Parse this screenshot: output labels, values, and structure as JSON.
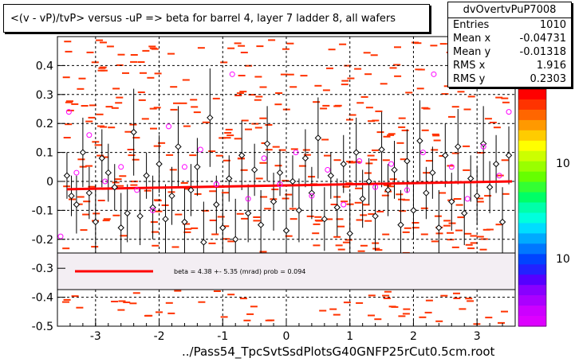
{
  "title": "<(v - vP)/tvP> versus  -uP => beta for barrel 4, layer 7 ladder 8, all wafers",
  "stats": {
    "name": "dvOvertvPuP7008",
    "rows": [
      {
        "label": "Entries",
        "value": "1010"
      },
      {
        "label": "Mean x",
        "value": "-0.04731"
      },
      {
        "label": "Mean y",
        "value": "-0.01318"
      },
      {
        "label": "RMS x",
        "value": "1.916"
      },
      {
        "label": "RMS y",
        "value": "0.2303"
      }
    ]
  },
  "xlabel": "../Pass54_TpcSvtSsdPlotsG40GNFP25rCut0.5cm.root",
  "legend_text": "beta =     4.38 +-   5.35 (mrad) prob = 0.094",
  "palette_labels": [
    "10",
    "10"
  ],
  "colors": {
    "fit_line": "#ff0000",
    "cell_fill": "#ff3300",
    "profile_marker": "#000000",
    "second_profile_marker": "#ff00ff"
  },
  "chart_data": {
    "type": "scatter",
    "xlim": [
      -3.6,
      3.6
    ],
    "ylim": [
      -0.5,
      0.5
    ],
    "x_ticks": [
      -3,
      -2,
      -1,
      0,
      1,
      2,
      3
    ],
    "x_tick_labels": [
      "-3",
      "-2",
      "-1",
      "0",
      "1",
      "2",
      "3"
    ],
    "y_ticks": [
      -0.5,
      -0.4,
      -0.3,
      -0.2,
      -0.1,
      0,
      0.1,
      0.2,
      0.3,
      0.4
    ],
    "y_tick_labels": [
      "-0.5",
      "-0.4",
      "-0.3",
      "-0.2",
      "-0.1",
      "0",
      "0.1",
      "0.2",
      "0.3",
      "0.4"
    ],
    "grid": true,
    "fit_line": {
      "x": [
        -3.45,
        3.55
      ],
      "y": [
        -0.027,
        0.0
      ]
    },
    "profile_black": [
      {
        "x": -3.45,
        "y": 0.02,
        "err": 0.08
      },
      {
        "x": -3.38,
        "y": -0.05,
        "err": 0.07
      },
      {
        "x": -3.3,
        "y": -0.08,
        "err": 0.1
      },
      {
        "x": -3.2,
        "y": 0.1,
        "err": 0.12
      },
      {
        "x": -3.1,
        "y": -0.04,
        "err": 0.09
      },
      {
        "x": -3.0,
        "y": -0.14,
        "err": 0.13
      },
      {
        "x": -2.9,
        "y": 0.08,
        "err": 0.1
      },
      {
        "x": -2.8,
        "y": 0.03,
        "err": 0.1
      },
      {
        "x": -2.7,
        "y": -0.02,
        "err": 0.08
      },
      {
        "x": -2.6,
        "y": -0.16,
        "err": 0.12
      },
      {
        "x": -2.5,
        "y": -0.11,
        "err": 0.1
      },
      {
        "x": -2.4,
        "y": 0.17,
        "err": 0.15
      },
      {
        "x": -2.3,
        "y": -0.12,
        "err": 0.1
      },
      {
        "x": -2.2,
        "y": 0.02,
        "err": 0.08
      },
      {
        "x": -2.1,
        "y": -0.09,
        "err": 0.11
      },
      {
        "x": -2.0,
        "y": 0.06,
        "err": 0.1
      },
      {
        "x": -1.9,
        "y": -0.13,
        "err": 0.12
      },
      {
        "x": -1.8,
        "y": -0.05,
        "err": 0.1
      },
      {
        "x": -1.7,
        "y": 0.12,
        "err": 0.14
      },
      {
        "x": -1.6,
        "y": -0.14,
        "err": 0.12
      },
      {
        "x": -1.5,
        "y": -0.03,
        "err": 0.09
      },
      {
        "x": -1.4,
        "y": 0.05,
        "err": 0.1
      },
      {
        "x": -1.3,
        "y": -0.21,
        "err": 0.14
      },
      {
        "x": -1.2,
        "y": 0.22,
        "err": 0.17
      },
      {
        "x": -1.1,
        "y": -0.08,
        "err": 0.1
      },
      {
        "x": -1.0,
        "y": -0.16,
        "err": 0.12
      },
      {
        "x": -0.9,
        "y": 0.01,
        "err": 0.08
      },
      {
        "x": -0.8,
        "y": -0.2,
        "err": 0.14
      },
      {
        "x": -0.7,
        "y": 0.09,
        "err": 0.12
      },
      {
        "x": -0.6,
        "y": -0.11,
        "err": 0.1
      },
      {
        "x": -0.5,
        "y": 0.04,
        "err": 0.09
      },
      {
        "x": -0.4,
        "y": -0.15,
        "err": 0.12
      },
      {
        "x": -0.3,
        "y": 0.13,
        "err": 0.13
      },
      {
        "x": -0.2,
        "y": -0.07,
        "err": 0.1
      },
      {
        "x": -0.1,
        "y": 0.03,
        "err": 0.08
      },
      {
        "x": 0.0,
        "y": -0.17,
        "err": 0.13
      },
      {
        "x": 0.1,
        "y": 0.0,
        "err": 0.09
      },
      {
        "x": 0.2,
        "y": -0.1,
        "err": 0.11
      },
      {
        "x": 0.3,
        "y": 0.08,
        "err": 0.1
      },
      {
        "x": 0.4,
        "y": -0.04,
        "err": 0.09
      },
      {
        "x": 0.5,
        "y": 0.15,
        "err": 0.14
      },
      {
        "x": 0.6,
        "y": -0.13,
        "err": 0.11
      },
      {
        "x": 0.7,
        "y": 0.02,
        "err": 0.08
      },
      {
        "x": 0.8,
        "y": -0.09,
        "err": 0.1
      },
      {
        "x": 0.9,
        "y": 0.06,
        "err": 0.1
      },
      {
        "x": 1.0,
        "y": -0.18,
        "err": 0.14
      },
      {
        "x": 1.1,
        "y": 0.1,
        "err": 0.12
      },
      {
        "x": 1.2,
        "y": -0.06,
        "err": 0.1
      },
      {
        "x": 1.3,
        "y": 0.0,
        "err": 0.08
      },
      {
        "x": 1.4,
        "y": -0.12,
        "err": 0.12
      },
      {
        "x": 1.5,
        "y": 0.11,
        "err": 0.13
      },
      {
        "x": 1.6,
        "y": -0.03,
        "err": 0.09
      },
      {
        "x": 1.7,
        "y": 0.04,
        "err": 0.1
      },
      {
        "x": 1.8,
        "y": -0.15,
        "err": 0.12
      },
      {
        "x": 1.9,
        "y": 0.07,
        "err": 0.11
      },
      {
        "x": 2.0,
        "y": -0.1,
        "err": 0.1
      },
      {
        "x": 2.1,
        "y": 0.14,
        "err": 0.14
      },
      {
        "x": 2.2,
        "y": -0.04,
        "err": 0.09
      },
      {
        "x": 2.3,
        "y": 0.03,
        "err": 0.09
      },
      {
        "x": 2.4,
        "y": -0.16,
        "err": 0.13
      },
      {
        "x": 2.5,
        "y": 0.09,
        "err": 0.11
      },
      {
        "x": 2.6,
        "y": -0.07,
        "err": 0.1
      },
      {
        "x": 2.7,
        "y": 0.12,
        "err": 0.13
      },
      {
        "x": 2.8,
        "y": -0.11,
        "err": 0.11
      },
      {
        "x": 2.9,
        "y": 0.01,
        "err": 0.08
      },
      {
        "x": 3.0,
        "y": -0.05,
        "err": 0.1
      },
      {
        "x": 3.1,
        "y": 0.13,
        "err": 0.13
      },
      {
        "x": 3.2,
        "y": -0.02,
        "err": 0.09
      },
      {
        "x": 3.3,
        "y": 0.06,
        "err": 0.1
      },
      {
        "x": 3.4,
        "y": -0.14,
        "err": 0.12
      },
      {
        "x": 3.5,
        "y": 0.09,
        "err": 0.1
      }
    ],
    "profile_magenta": [
      {
        "x": -3.55,
        "y": -0.19
      },
      {
        "x": -3.42,
        "y": 0.24
      },
      {
        "x": -3.3,
        "y": 0.03
      },
      {
        "x": -3.1,
        "y": 0.16
      },
      {
        "x": -2.85,
        "y": 0.0
      },
      {
        "x": -2.6,
        "y": 0.05
      },
      {
        "x": -2.35,
        "y": -0.03
      },
      {
        "x": -2.1,
        "y": -0.1
      },
      {
        "x": -1.85,
        "y": 0.19
      },
      {
        "x": -1.6,
        "y": 0.05
      },
      {
        "x": -1.35,
        "y": 0.11
      },
      {
        "x": -1.1,
        "y": -0.01
      },
      {
        "x": -0.85,
        "y": 0.37
      },
      {
        "x": -0.6,
        "y": -0.06
      },
      {
        "x": -0.35,
        "y": 0.08
      },
      {
        "x": -0.1,
        "y": -0.01
      },
      {
        "x": 0.15,
        "y": 0.1
      },
      {
        "x": 0.4,
        "y": -0.05
      },
      {
        "x": 0.65,
        "y": 0.04
      },
      {
        "x": 0.9,
        "y": -0.08
      },
      {
        "x": 1.15,
        "y": 0.07
      },
      {
        "x": 1.4,
        "y": -0.02
      },
      {
        "x": 1.65,
        "y": 0.06
      },
      {
        "x": 1.9,
        "y": -0.03
      },
      {
        "x": 2.15,
        "y": 0.1
      },
      {
        "x": 2.32,
        "y": 0.37
      },
      {
        "x": 2.6,
        "y": 0.05
      },
      {
        "x": 2.85,
        "y": -0.06
      },
      {
        "x": 3.1,
        "y": 0.12
      },
      {
        "x": 3.35,
        "y": 0.02
      },
      {
        "x": 3.5,
        "y": 0.24
      }
    ]
  }
}
